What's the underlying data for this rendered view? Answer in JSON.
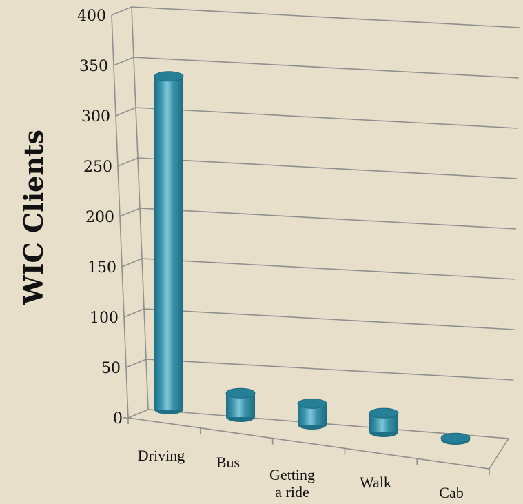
{
  "chart_data": {
    "type": "bar",
    "style": "3d-cylinder",
    "title": "",
    "xlabel": "",
    "ylabel": "WIC Clients",
    "categories": [
      "Driving",
      "Bus",
      "Getting a ride",
      "Walk",
      "Cab"
    ],
    "category_lines": [
      [
        "Driving"
      ],
      [
        "Bus"
      ],
      [
        "Getting",
        "a ride"
      ],
      [
        "Walk"
      ],
      [
        "Cab"
      ]
    ],
    "values": [
      347,
      25,
      22,
      20,
      2
    ],
    "ylim": [
      0,
      400
    ],
    "yticks": [
      0,
      50,
      100,
      150,
      200,
      250,
      300,
      350,
      400
    ],
    "grid": true,
    "legend": "none",
    "colors": {
      "bar_body": "#3a93ab",
      "bar_top": "#247f97",
      "bar_highlight": "#7fc7da",
      "background": "#e8dfcb",
      "gridline": "#8f8f8f"
    }
  }
}
